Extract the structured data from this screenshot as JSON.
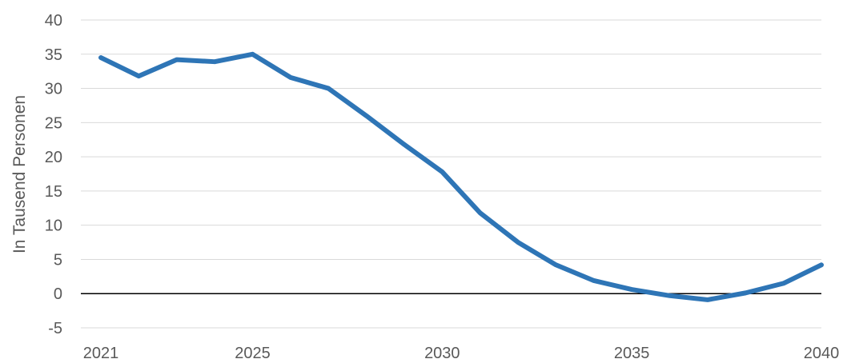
{
  "chart_data": {
    "type": "line",
    "title": "",
    "xlabel": "",
    "ylabel": "In Tausend Personen",
    "ylim": [
      -5,
      40
    ],
    "yticks": [
      -5,
      0,
      5,
      10,
      15,
      20,
      25,
      30,
      35,
      40
    ],
    "xlim": [
      2021,
      2040
    ],
    "xticks": [
      2021,
      2025,
      2030,
      2035,
      2040
    ],
    "grid": true,
    "legend": "none",
    "colors": {
      "series": "#2e75b6",
      "grid": "#d9d9d9",
      "zero_line": "#000000",
      "text": "#595959"
    },
    "x": [
      2021,
      2022,
      2023,
      2024,
      2025,
      2026,
      2027,
      2028,
      2029,
      2030,
      2031,
      2032,
      2033,
      2034,
      2035,
      2036,
      2037,
      2038,
      2039,
      2040
    ],
    "series": [
      {
        "values": [
          34.5,
          31.8,
          34.2,
          33.9,
          35.0,
          31.6,
          30.0,
          26.0,
          21.8,
          17.8,
          11.8,
          7.5,
          4.2,
          1.9,
          0.6,
          -0.3,
          -0.9,
          0.1,
          1.5,
          4.2
        ]
      }
    ]
  }
}
